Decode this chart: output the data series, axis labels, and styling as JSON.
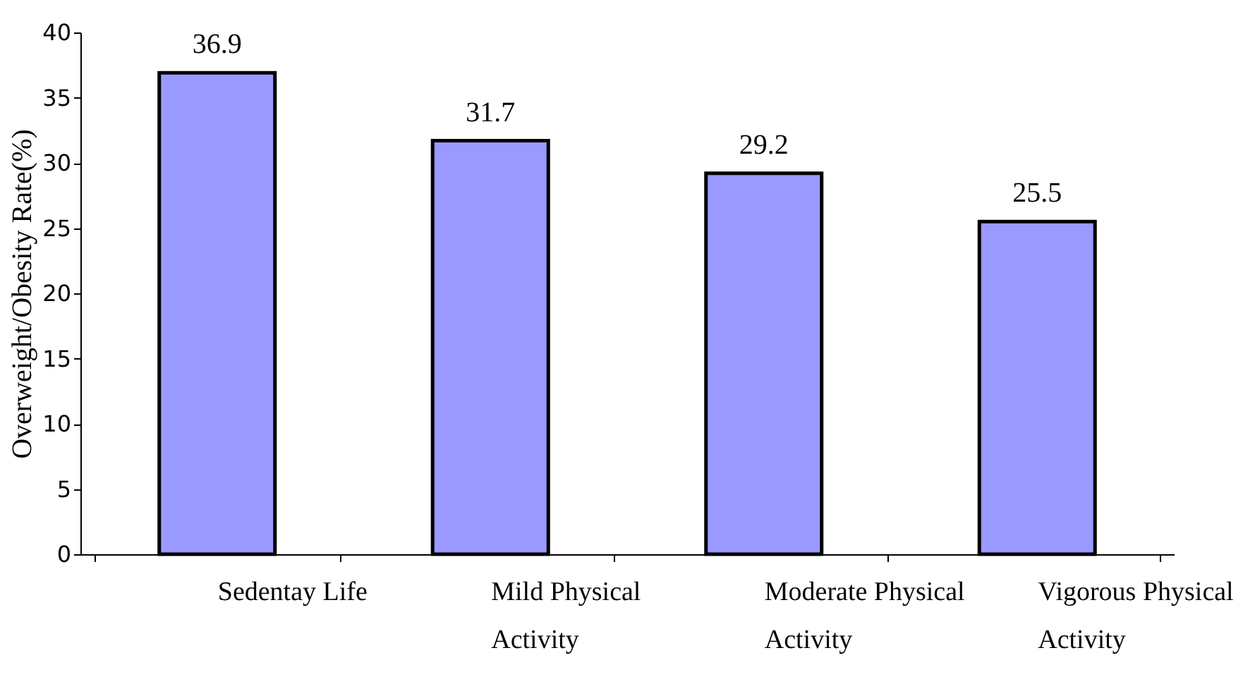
{
  "chart_data": {
    "type": "bar",
    "ylabel": "Overweight/Obesity  Rate(%)",
    "categories": [
      "Sedentay Life",
      "Mild Physical Activity",
      "Moderate Physical Activity",
      "Vigorous Physical Activity"
    ],
    "values": [
      36.9,
      31.7,
      29.2,
      25.5
    ],
    "color": "#9999ff",
    "data_labels": true,
    "grid": false,
    "ylim": [
      0,
      40
    ],
    "yticks": [
      0,
      5,
      10,
      15,
      20,
      25,
      30,
      35,
      40
    ]
  }
}
